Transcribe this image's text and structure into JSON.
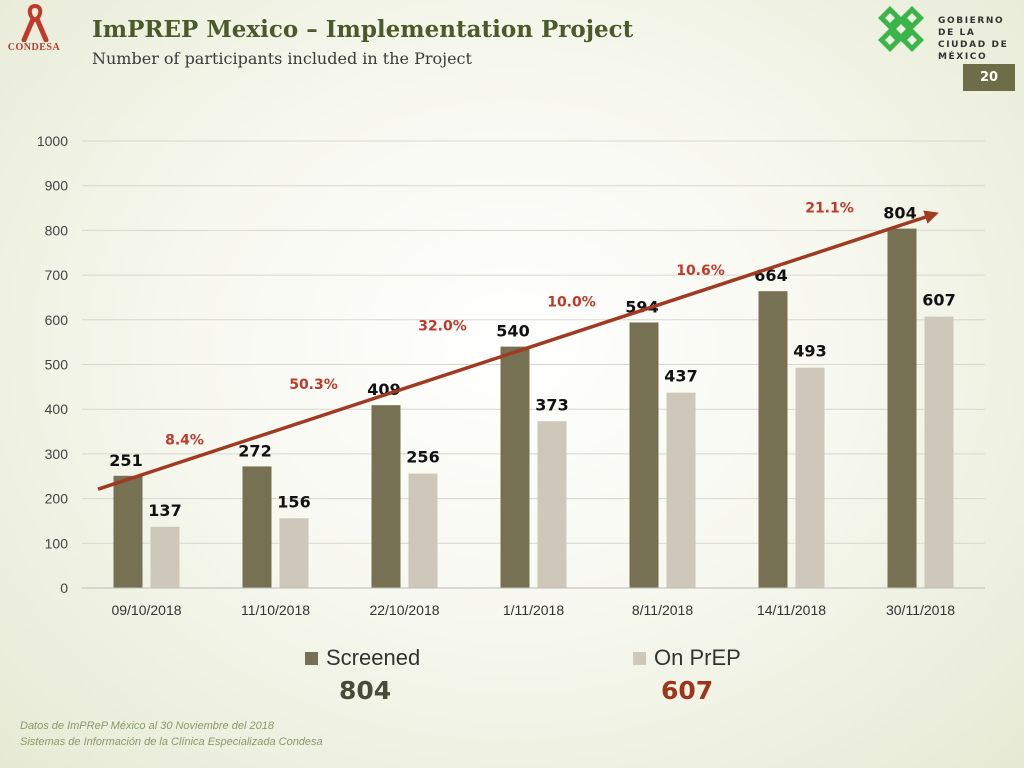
{
  "header": {
    "title": "ImPREP Mexico – Implementation Project",
    "subtitle": "Number of participants included in the Project",
    "page_number": "20"
  },
  "logos": {
    "left_text": "CONDESA",
    "right_line1": "GOBIERNO DE LA",
    "right_line2": "CIUDAD DE MÉXICO"
  },
  "colors": {
    "screened": "#767152",
    "on_prep": "#cdc8ba",
    "trend": "#a03a22",
    "growth_label": "#c0392b",
    "title": "#4a5a2a",
    "green_logo": "#3bb54a",
    "red_ribbon": "#c0392b"
  },
  "chart_data": {
    "type": "bar",
    "categories": [
      "09/10/2018",
      "11/10/2018",
      "22/10/2018",
      "1/11/2018",
      "8/11/2018",
      "14/11/2018",
      "30/11/2018"
    ],
    "series": [
      {
        "name": "Screened",
        "values": [
          251,
          272,
          409,
          540,
          594,
          664,
          804
        ]
      },
      {
        "name": "On PrEP",
        "values": [
          137,
          156,
          256,
          373,
          437,
          493,
          607
        ]
      }
    ],
    "growth_labels": [
      "8.4%",
      "50.3%",
      "32.0%",
      "10.0%",
      "10.6%",
      "21.1%"
    ],
    "yticks": [
      0,
      100,
      200,
      300,
      400,
      500,
      600,
      700,
      800,
      900,
      1000
    ],
    "ylim": [
      0,
      1000
    ],
    "grid": true,
    "legend_position": "bottom",
    "trend_arrow": true
  },
  "legend": {
    "screened_label": "Screened",
    "on_prep_label": "On PrEP",
    "screened_total": "804",
    "on_prep_total": "607"
  },
  "footer": {
    "line1": "Datos de ImPReP México al 30 Noviembre del 2018",
    "line2": "Sistemas de Información de la Clínica Especializada Condesa"
  }
}
